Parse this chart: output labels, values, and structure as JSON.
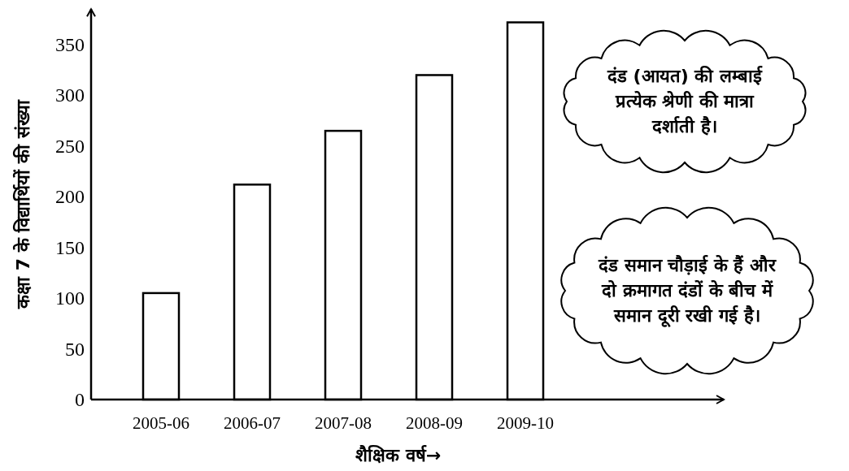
{
  "chart_data": {
    "type": "bar",
    "xlabel": "शैक्षिक वर्ष→",
    "ylabel": "कक्षा 7 के विद्यार्थियों की संख्या",
    "categories": [
      "2005-06",
      "2006-07",
      "2007-08",
      "2008-09",
      "2009-10"
    ],
    "values": [
      105,
      212,
      265,
      320,
      372
    ],
    "color": "#ffffff",
    "ylim": [
      0,
      385
    ],
    "yticks": [
      0,
      50,
      100,
      150,
      200,
      250,
      300,
      350
    ],
    "annotations": [
      "दंड (आयत) की लम्बाई प्रत्येक श्रेणी की मात्रा दर्शाती है।",
      "दंड समान चौड़ाई के हैं और दो क्रमागत दंडों के बीच में समान दूरी रखी गई है।"
    ]
  }
}
